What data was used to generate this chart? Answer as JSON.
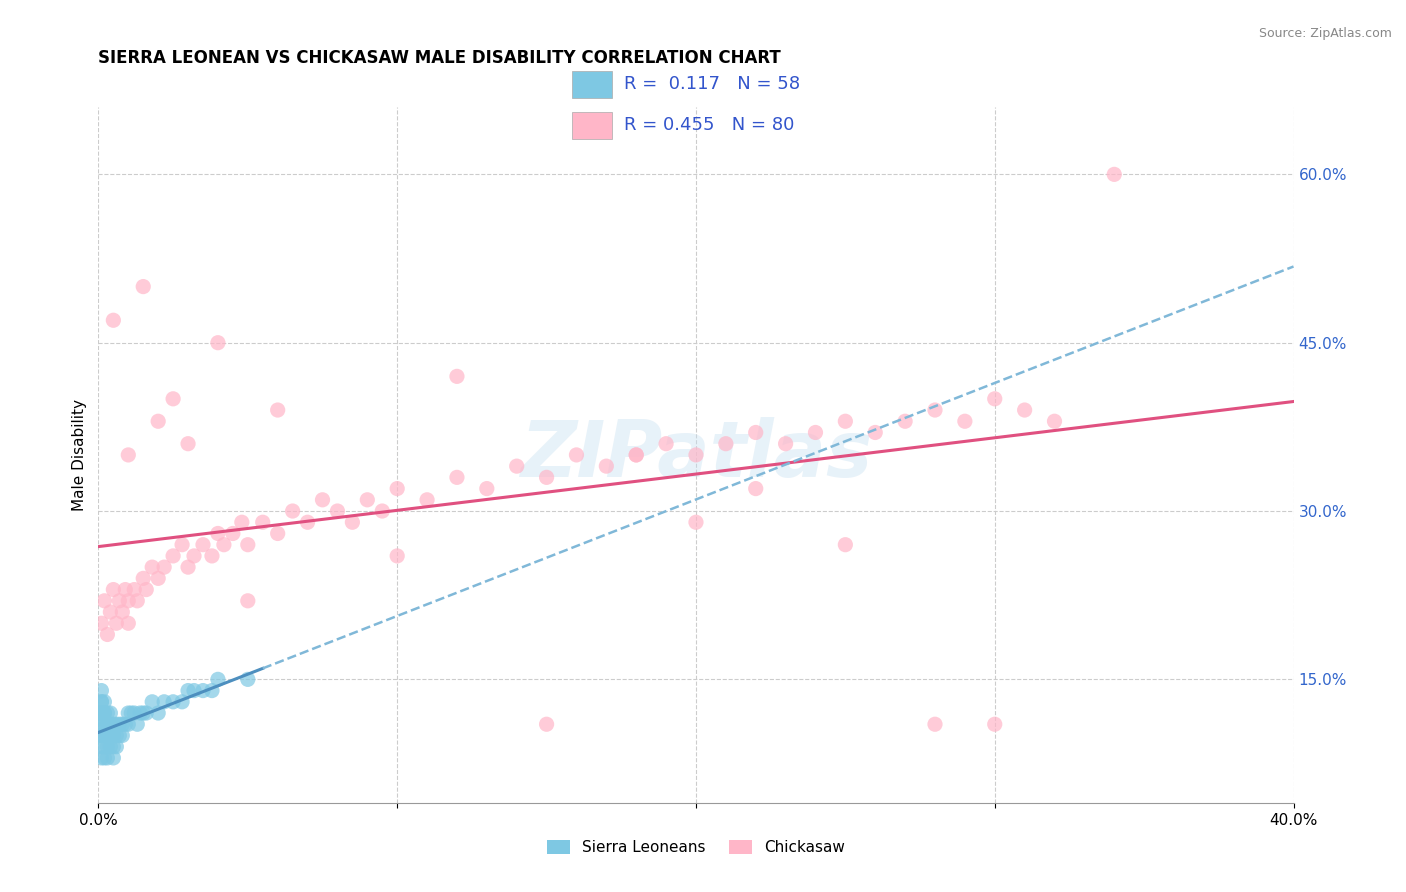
{
  "title": "SIERRA LEONEAN VS CHICKASAW MALE DISABILITY CORRELATION CHART",
  "source": "Source: ZipAtlas.com",
  "ylabel": "Male Disability",
  "x_min": 0.0,
  "x_max": 0.4,
  "y_min": 0.04,
  "y_max": 0.66,
  "x_ticks": [
    0.0,
    0.1,
    0.2,
    0.3,
    0.4
  ],
  "x_tick_labels": [
    "0.0%",
    "",
    "",
    "",
    "40.0%"
  ],
  "y_ticks_right": [
    0.15,
    0.3,
    0.45,
    0.6
  ],
  "y_tick_labels_right": [
    "15.0%",
    "30.0%",
    "45.0%",
    "60.0%"
  ],
  "legend_R1": "0.117",
  "legend_N1": "58",
  "legend_R2": "0.455",
  "legend_N2": "80",
  "color_blue": "#7ec8e3",
  "color_pink": "#ffb6c8",
  "color_blue_line": "#4d8fbf",
  "color_pink_line": "#e05080",
  "color_blue_dash": "#80b8d8",
  "watermark_text": "ZIPatlas",
  "sierra_x": [
    0.001,
    0.001,
    0.001,
    0.001,
    0.001,
    0.001,
    0.001,
    0.001,
    0.001,
    0.001,
    0.001,
    0.002,
    0.002,
    0.002,
    0.002,
    0.002,
    0.002,
    0.002,
    0.003,
    0.003,
    0.003,
    0.003,
    0.003,
    0.004,
    0.004,
    0.004,
    0.004,
    0.005,
    0.005,
    0.005,
    0.005,
    0.006,
    0.006,
    0.006,
    0.007,
    0.007,
    0.008,
    0.008,
    0.009,
    0.01,
    0.01,
    0.011,
    0.012,
    0.013,
    0.014,
    0.015,
    0.016,
    0.018,
    0.02,
    0.022,
    0.025,
    0.028,
    0.03,
    0.032,
    0.035,
    0.038,
    0.04,
    0.05
  ],
  "sierra_y": [
    0.08,
    0.09,
    0.1,
    0.1,
    0.11,
    0.11,
    0.12,
    0.12,
    0.13,
    0.13,
    0.14,
    0.08,
    0.09,
    0.1,
    0.11,
    0.12,
    0.12,
    0.13,
    0.08,
    0.09,
    0.1,
    0.11,
    0.12,
    0.09,
    0.1,
    0.11,
    0.12,
    0.08,
    0.09,
    0.1,
    0.11,
    0.09,
    0.1,
    0.11,
    0.1,
    0.11,
    0.1,
    0.11,
    0.11,
    0.11,
    0.12,
    0.12,
    0.12,
    0.11,
    0.12,
    0.12,
    0.12,
    0.13,
    0.12,
    0.13,
    0.13,
    0.13,
    0.14,
    0.14,
    0.14,
    0.14,
    0.15,
    0.15
  ],
  "chickasaw_x": [
    0.001,
    0.002,
    0.003,
    0.004,
    0.005,
    0.006,
    0.007,
    0.008,
    0.009,
    0.01,
    0.01,
    0.012,
    0.013,
    0.015,
    0.016,
    0.018,
    0.02,
    0.022,
    0.025,
    0.028,
    0.03,
    0.032,
    0.035,
    0.038,
    0.04,
    0.042,
    0.045,
    0.048,
    0.05,
    0.055,
    0.06,
    0.065,
    0.07,
    0.075,
    0.08,
    0.085,
    0.09,
    0.095,
    0.1,
    0.11,
    0.12,
    0.13,
    0.14,
    0.15,
    0.16,
    0.17,
    0.18,
    0.19,
    0.2,
    0.21,
    0.22,
    0.23,
    0.24,
    0.25,
    0.26,
    0.27,
    0.28,
    0.29,
    0.3,
    0.31,
    0.005,
    0.01,
    0.015,
    0.02,
    0.025,
    0.03,
    0.04,
    0.05,
    0.06,
    0.1,
    0.12,
    0.15,
    0.2,
    0.25,
    0.3,
    0.32,
    0.18,
    0.22,
    0.28,
    0.34
  ],
  "chickasaw_y": [
    0.2,
    0.22,
    0.19,
    0.21,
    0.23,
    0.2,
    0.22,
    0.21,
    0.23,
    0.22,
    0.2,
    0.23,
    0.22,
    0.24,
    0.23,
    0.25,
    0.24,
    0.25,
    0.26,
    0.27,
    0.25,
    0.26,
    0.27,
    0.26,
    0.28,
    0.27,
    0.28,
    0.29,
    0.27,
    0.29,
    0.28,
    0.3,
    0.29,
    0.31,
    0.3,
    0.29,
    0.31,
    0.3,
    0.32,
    0.31,
    0.33,
    0.32,
    0.34,
    0.33,
    0.35,
    0.34,
    0.35,
    0.36,
    0.35,
    0.36,
    0.37,
    0.36,
    0.37,
    0.38,
    0.37,
    0.38,
    0.39,
    0.38,
    0.4,
    0.39,
    0.47,
    0.35,
    0.5,
    0.38,
    0.4,
    0.36,
    0.45,
    0.22,
    0.39,
    0.26,
    0.42,
    0.11,
    0.29,
    0.27,
    0.11,
    0.38,
    0.35,
    0.32,
    0.11,
    0.6
  ]
}
